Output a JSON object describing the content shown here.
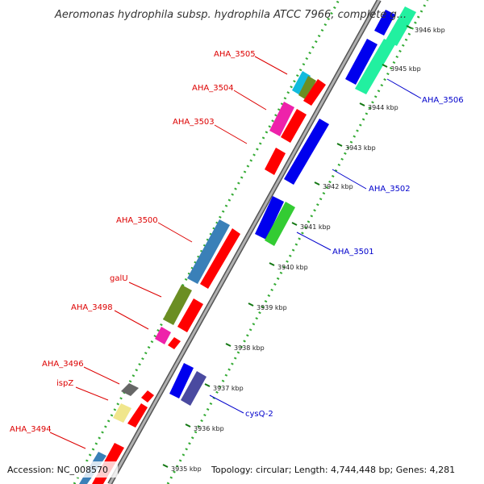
{
  "map": {
    "title": "Aeromonas hydrophila subsp. hydrophila ATCC 7966, complete g...",
    "accession": "Accession: NC_008570",
    "summary": "Topology: circular; Length: 4,744,448 bp; Genes: 4,281"
  },
  "ticks": [
    "3935 kbp",
    "3936 kbp",
    "3937 kbp",
    "3938 kbp",
    "3939 kbp",
    "3940 kbp",
    "3941 kbp",
    "3942 kbp",
    "3943 kbp",
    "3944 kbp",
    "3945 kbp",
    "3946 kbp"
  ],
  "genes_left": [
    "AHA_3494",
    "ispZ",
    "AHA_3496",
    "AHA_3498",
    "galU",
    "AHA_3500",
    "AHA_3503",
    "AHA_3504",
    "AHA_3505"
  ],
  "genes_right": [
    "cysQ-2",
    "AHA_3501",
    "AHA_3502",
    "AHA_3506"
  ],
  "colors": {
    "left_label": "#dd0000",
    "right_label": "#0000cc",
    "backbone": "#9a9a9a",
    "cds_red": "#ff0000",
    "cds_blue": "#0000ee",
    "cds_teal": "#3a80b8",
    "cds_green": "#33cc33",
    "cds_mint": "#22f0a0",
    "cds_olive": "#6b8e23",
    "cds_magenta": "#ee22aa",
    "cds_cyan": "#11bbdd",
    "cds_khaki": "#f0e68c",
    "cds_gray": "#666666",
    "cds_slate": "#4a4aa0"
  }
}
